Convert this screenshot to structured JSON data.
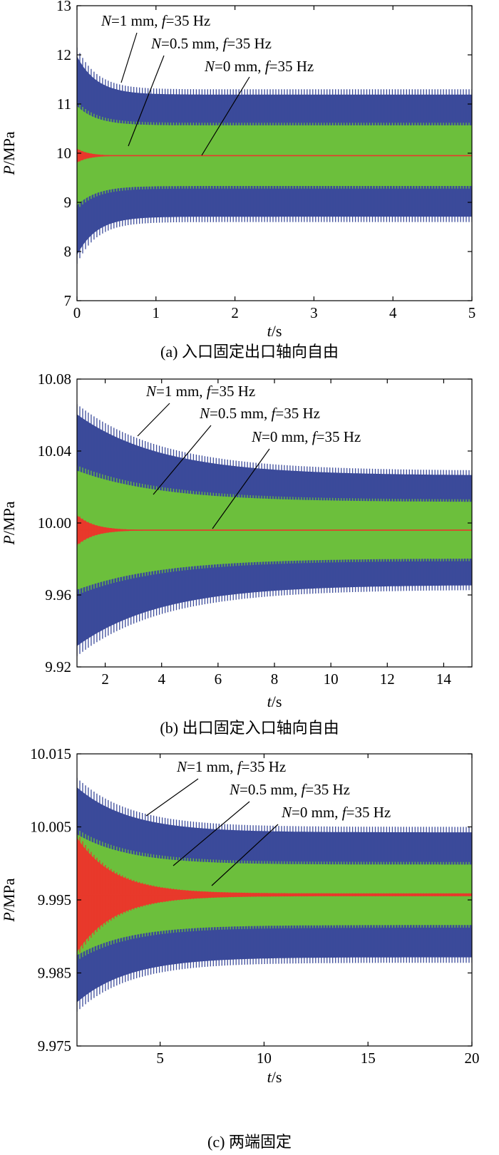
{
  "chart_data": [
    {
      "type": "line",
      "caption": "(a) 入口固定出口轴向自由",
      "xlabel": {
        "sym": "t",
        "unit": "/s"
      },
      "ylabel": {
        "sym": "P",
        "unit": "/MPa"
      },
      "xlim": [
        0,
        5
      ],
      "ylim": [
        7,
        13
      ],
      "xticks": [
        "0",
        "1",
        "2",
        "3",
        "4",
        "5"
      ],
      "yticks": [
        "7",
        "8",
        "9",
        "10",
        "11",
        "12",
        "13"
      ],
      "series": [
        {
          "name": "N=1 mm, f=35 Hz",
          "label": {
            "p1": "N",
            "p2": "=1 mm, ",
            "p3": "f",
            "p4": "=35 Hz"
          },
          "color": "#3b4a9a",
          "freq_hz": 35,
          "mean": 9.95,
          "initial_amplitude": 2.2,
          "steady_amplitude": 1.35,
          "settle_tau_s": 0.25,
          "t_start": 0
        },
        {
          "name": "N=0.5 mm, f=35 Hz",
          "label": {
            "p1": "N",
            "p2": "=0.5 mm, ",
            "p3": "f",
            "p4": "=35 Hz"
          },
          "color": "#6cbf3c",
          "freq_hz": 35,
          "mean": 9.95,
          "initial_amplitude": 1.1,
          "steady_amplitude": 0.67,
          "settle_tau_s": 0.25,
          "t_start": 0
        },
        {
          "name": "N=0 mm, f=35 Hz",
          "label": {
            "p1": "N",
            "p2": "=0 mm, ",
            "p3": "f",
            "p4": "=35 Hz"
          },
          "color": "#e8392b",
          "freq_hz": 35,
          "mean": 9.95,
          "initial_amplitude": 0.15,
          "steady_amplitude": 0.0,
          "settle_tau_s": 0.15,
          "t_start": 0
        }
      ]
    },
    {
      "type": "line",
      "caption": "(b) 出口固定入口轴向自由",
      "xlabel": {
        "sym": "t",
        "unit": "/s"
      },
      "ylabel": {
        "sym": "P",
        "unit": "/MPa"
      },
      "xlim": [
        1,
        15
      ],
      "ylim": [
        9.92,
        10.08
      ],
      "xticks": [
        "2",
        "4",
        "6",
        "8",
        "10",
        "12",
        "14"
      ],
      "yticks": [
        "9.92",
        "9.96",
        "10.00",
        "10.04",
        "10.08"
      ],
      "series": [
        {
          "name": "N=1 mm, f=35 Hz",
          "label": {
            "p1": "N",
            "p2": "=1 mm, ",
            "p3": "f",
            "p4": "=35 Hz"
          },
          "color": "#3b4a9a",
          "freq_hz": 35,
          "mean": 9.996,
          "initial_amplitude": 0.07,
          "steady_amplitude": 0.033,
          "settle_tau_s": 3.0,
          "t_start": 1
        },
        {
          "name": "N=0.5 mm, f=35 Hz",
          "label": {
            "p1": "N",
            "p2": "=0.5 mm, ",
            "p3": "f",
            "p4": "=35 Hz"
          },
          "color": "#6cbf3c",
          "freq_hz": 35,
          "mean": 9.996,
          "initial_amplitude": 0.036,
          "steady_amplitude": 0.017,
          "settle_tau_s": 3.0,
          "t_start": 1
        },
        {
          "name": "N=0 mm, f=35 Hz",
          "label": {
            "p1": "N",
            "p2": "=0 mm, ",
            "p3": "f",
            "p4": "=35 Hz"
          },
          "color": "#e8392b",
          "freq_hz": 35,
          "mean": 9.996,
          "initial_amplitude": 0.009,
          "steady_amplitude": 0.0,
          "settle_tau_s": 0.6,
          "t_start": 1
        }
      ]
    },
    {
      "type": "line",
      "caption": "(c) 两端固定",
      "xlabel": {
        "sym": "t",
        "unit": "/s"
      },
      "ylabel": {
        "sym": "P",
        "unit": "/MPa"
      },
      "xlim": [
        1,
        20
      ],
      "ylim": [
        9.975,
        10.015
      ],
      "xticks": [
        "5",
        "10",
        "15",
        "20"
      ],
      "yticks": [
        "9.975",
        "9.985",
        "9.995",
        "10.005",
        "10.015"
      ],
      "series": [
        {
          "name": "N=1 mm, f=35 Hz",
          "label": {
            "p1": "N",
            "p2": "=1 mm, ",
            "p3": "f",
            "p4": "=35 Hz"
          },
          "color": "#3b4a9a",
          "freq_hz": 35,
          "mean": 9.9957,
          "initial_amplitude": 0.016,
          "steady_amplitude": 0.0093,
          "settle_tau_s": 2.5,
          "t_start": 1
        },
        {
          "name": "N=0.5 mm, f=35 Hz",
          "label": {
            "p1": "N",
            "p2": "=0.5 mm, ",
            "p3": "f",
            "p4": "=35 Hz"
          },
          "color": "#6cbf3c",
          "freq_hz": 35,
          "mean": 9.9957,
          "initial_amplitude": 0.009,
          "steady_amplitude": 0.0045,
          "settle_tau_s": 2.5,
          "t_start": 1
        },
        {
          "name": "N=0 mm, f=35 Hz",
          "label": {
            "p1": "N",
            "p2": "=0 mm, ",
            "p3": "f",
            "p4": "=35 Hz"
          },
          "color": "#e8392b",
          "freq_hz": 35,
          "mean": 9.9957,
          "initial_amplitude": 0.0085,
          "steady_amplitude": 0.0002,
          "settle_tau_s": 1.8,
          "t_start": 1
        }
      ]
    }
  ]
}
